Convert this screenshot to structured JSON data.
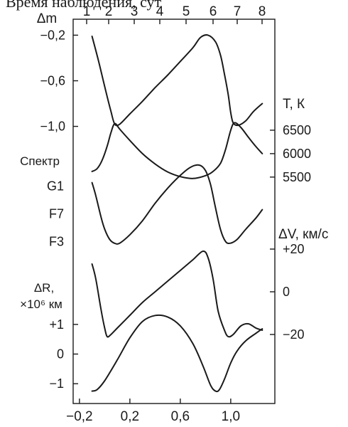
{
  "top_text": "Время наблюдения, сут",
  "chart_data": [
    {
      "type": "line",
      "panel": "magnitude",
      "ylabel": "Δm",
      "ylim": [
        -1.14,
        -0.06
      ],
      "ytick_labels": [
        "−1,0",
        "−0,6",
        "−0,2"
      ],
      "ytick_values": [
        -1.0,
        -0.6,
        -0.2
      ],
      "top_axis_label": "",
      "top_ticks": [
        "1",
        "2",
        "3",
        "4",
        "5",
        "6",
        "7",
        "8"
      ],
      "x": [
        -0.1,
        -0.05,
        0.0,
        0.05,
        0.08,
        0.12,
        0.2,
        0.3,
        0.4,
        0.5,
        0.6,
        0.7,
        0.76,
        0.82,
        0.88,
        0.92,
        0.95,
        0.98,
        1.0,
        1.02,
        1.06,
        1.12,
        1.18,
        1.25
      ],
      "values": [
        -0.21,
        -0.42,
        -0.65,
        -0.87,
        -0.98,
        -0.98,
        -0.89,
        -0.78,
        -0.66,
        -0.55,
        -0.43,
        -0.31,
        -0.22,
        -0.2,
        -0.26,
        -0.38,
        -0.54,
        -0.72,
        -0.88,
        -0.97,
        -0.99,
        -0.95,
        -0.87,
        -0.8
      ]
    },
    {
      "type": "line",
      "panel": "temperature",
      "ylabel": "T, К",
      "ylim": [
        5300,
        7000
      ],
      "ytick_labels": [
        "6500",
        "6000",
        "5500"
      ],
      "ytick_values": [
        6500,
        6000,
        5500
      ],
      "x": [
        -0.1,
        -0.06,
        -0.02,
        0.02,
        0.05,
        0.08,
        0.12,
        0.2,
        0.3,
        0.4,
        0.5,
        0.6,
        0.7,
        0.8,
        0.86,
        0.92,
        0.96,
        1.0,
        1.03,
        1.08,
        1.14,
        1.2,
        1.25
      ],
      "values": [
        5620,
        5680,
        5860,
        6160,
        6450,
        6640,
        6520,
        6280,
        6000,
        5780,
        5610,
        5510,
        5470,
        5530,
        5620,
        5800,
        6100,
        6500,
        6660,
        6560,
        6350,
        6150,
        6000
      ]
    },
    {
      "type": "line",
      "panel": "spectrum",
      "ylabel": "Спектр",
      "ytick_labels": [
        "F3",
        "F7",
        "G1"
      ],
      "ytick_values": [
        0,
        1,
        2
      ],
      "ylim": [
        -0.7,
        2.8
      ],
      "x": [
        -0.1,
        -0.07,
        -0.03,
        0.0,
        0.04,
        0.08,
        0.12,
        0.2,
        0.3,
        0.4,
        0.5,
        0.6,
        0.68,
        0.75,
        0.8,
        0.84,
        0.88,
        0.92,
        0.96,
        1.0,
        1.05,
        1.12,
        1.2,
        1.25
      ],
      "values": [
        2.12,
        1.65,
        0.9,
        0.45,
        0.08,
        -0.06,
        -0.05,
        0.25,
        0.75,
        1.38,
        1.92,
        2.38,
        2.67,
        2.75,
        2.55,
        2.05,
        1.2,
        0.42,
        0.0,
        -0.05,
        0.08,
        0.45,
        0.85,
        1.15
      ]
    },
    {
      "type": "line",
      "panel": "radial_velocity",
      "ylabel": "ΔV, км/с",
      "ylim": [
        -30,
        30
      ],
      "ytick_labels": [
        "+20",
        "0",
        "−20"
      ],
      "ytick_values": [
        20,
        0,
        -20
      ],
      "x": [
        -0.1,
        -0.07,
        -0.03,
        0.0,
        0.02,
        0.05,
        0.1,
        0.2,
        0.3,
        0.4,
        0.5,
        0.6,
        0.7,
        0.78,
        0.82,
        0.86,
        0.9,
        0.95,
        0.98,
        1.02,
        1.08,
        1.14,
        1.2,
        1.25
      ],
      "values": [
        13,
        6,
        -8,
        -17,
        -21,
        -20,
        -17,
        -11,
        -5,
        0,
        5,
        10,
        15,
        19,
        16,
        6,
        -9,
        -18,
        -21,
        -20,
        -16,
        -15,
        -17,
        -18
      ]
    },
    {
      "type": "line",
      "panel": "radius",
      "ylabel": "ΔR, ×10⁶ км",
      "ylim": [
        -1.5,
        1.5
      ],
      "ytick_labels": [
        "+1",
        "0",
        "−1"
      ],
      "ytick_values": [
        1,
        0,
        -1
      ],
      "xlim": [
        -0.25,
        1.35
      ],
      "xtick_labels": [
        "−0,2",
        "0,2",
        "0,6",
        "1,0"
      ],
      "xtick_values": [
        -0.2,
        0.2,
        0.6,
        1.0
      ],
      "x": [
        -0.1,
        -0.06,
        0.0,
        0.1,
        0.2,
        0.3,
        0.4,
        0.5,
        0.6,
        0.7,
        0.78,
        0.84,
        0.88,
        0.91,
        0.95,
        1.0,
        1.05,
        1.12,
        1.2,
        1.25
      ],
      "values": [
        -1.25,
        -1.2,
        -0.9,
        -0.2,
        0.55,
        1.1,
        1.3,
        1.25,
        0.95,
        0.35,
        -0.4,
        -1.05,
        -1.25,
        -1.2,
        -0.85,
        -0.3,
        0.1,
        0.45,
        0.7,
        0.85
      ]
    }
  ]
}
